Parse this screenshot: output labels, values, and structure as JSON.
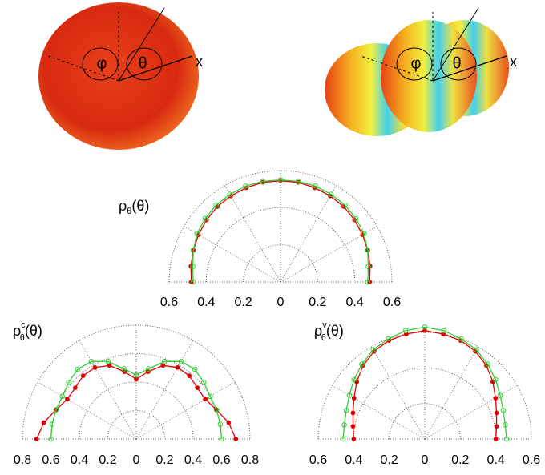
{
  "figure_labels": [
    {
      "phi": "φ",
      "theta": "θ",
      "axis": "x"
    },
    {
      "phi": "φ",
      "theta": "θ",
      "axis": "x"
    }
  ],
  "chart_data": [
    {
      "type": "polar-half",
      "title_symbol": "ρ",
      "title_subscript": "θ",
      "title_argument": "(θ)",
      "x": [
        -90,
        -80,
        -70,
        -60,
        -50,
        -40,
        -30,
        -20,
        -10,
        0,
        10,
        20,
        30,
        40,
        50,
        60,
        70,
        80,
        90
      ],
      "xlim": [
        -90,
        90
      ],
      "ylim": [
        0,
        0.6
      ],
      "yticks": [
        {
          "value": -0.6,
          "label": "0.6"
        },
        {
          "value": -0.4,
          "label": "0.4"
        },
        {
          "value": -0.2,
          "label": "0.2"
        },
        0,
        0.2,
        0.4,
        0.6
      ],
      "series": [
        {
          "color": "#e00000",
          "values": [
            0.48,
            0.49,
            0.5,
            0.51,
            0.52,
            0.53,
            0.535,
            0.54,
            0.545,
            0.545,
            0.545,
            0.54,
            0.535,
            0.53,
            0.52,
            0.51,
            0.5,
            0.49,
            0.48
          ]
        },
        {
          "color": "#33cc33",
          "values": [
            0.47,
            0.48,
            0.5,
            0.52,
            0.53,
            0.54,
            0.545,
            0.55,
            0.55,
            0.55,
            0.55,
            0.55,
            0.545,
            0.54,
            0.53,
            0.52,
            0.5,
            0.48,
            0.47
          ]
        }
      ]
    },
    {
      "type": "polar-half",
      "title_symbol": "ρ",
      "title_subscript": "θ",
      "title_superscript": "c",
      "title_argument": "(θ)",
      "x": [
        -90,
        -80,
        -70,
        -60,
        -50,
        -40,
        -30,
        -20,
        -10,
        0,
        10,
        20,
        30,
        40,
        50,
        60,
        70,
        80,
        90
      ],
      "xlim": [
        -90,
        90
      ],
      "ylim": [
        0,
        0.8
      ],
      "yticks": [
        {
          "value": -0.8,
          "label": "0.8"
        },
        {
          "value": -0.6,
          "label": "0.6"
        },
        {
          "value": -0.4,
          "label": "0.4"
        },
        {
          "value": -0.2,
          "label": "0.2"
        },
        0,
        0.2,
        0.4,
        0.6,
        0.8
      ],
      "series": [
        {
          "color": "#e00000",
          "values": [
            0.7,
            0.66,
            0.6,
            0.56,
            0.56,
            0.58,
            0.58,
            0.55,
            0.48,
            0.42,
            0.48,
            0.55,
            0.58,
            0.58,
            0.56,
            0.56,
            0.6,
            0.66,
            0.7
          ]
        },
        {
          "color": "#33cc33",
          "values": [
            0.6,
            0.6,
            0.6,
            0.6,
            0.62,
            0.64,
            0.63,
            0.58,
            0.5,
            0.45,
            0.5,
            0.58,
            0.63,
            0.64,
            0.62,
            0.6,
            0.6,
            0.6,
            0.6
          ]
        }
      ]
    },
    {
      "type": "polar-half",
      "title_symbol": "ρ",
      "title_subscript": "θ",
      "title_superscript": "v",
      "title_argument": "(θ)",
      "x": [
        -90,
        -80,
        -70,
        -60,
        -50,
        -40,
        -30,
        -20,
        -10,
        0,
        10,
        20,
        30,
        40,
        50,
        60,
        70,
        80,
        90
      ],
      "xlim": [
        -90,
        90
      ],
      "ylim": [
        0,
        0.6
      ],
      "yticks": [
        {
          "value": -0.6,
          "label": "0.6"
        },
        {
          "value": -0.4,
          "label": "0.4"
        },
        {
          "value": -0.2,
          "label": "0.2"
        },
        0,
        0.2,
        0.4,
        0.6
      ],
      "series": [
        {
          "color": "#e00000",
          "values": [
            0.4,
            0.41,
            0.43,
            0.46,
            0.5,
            0.54,
            0.57,
            0.59,
            0.6,
            0.61,
            0.6,
            0.59,
            0.57,
            0.54,
            0.5,
            0.46,
            0.43,
            0.41,
            0.4
          ]
        },
        {
          "color": "#33cc33",
          "values": [
            0.46,
            0.46,
            0.47,
            0.49,
            0.52,
            0.55,
            0.58,
            0.6,
            0.62,
            0.63,
            0.62,
            0.6,
            0.58,
            0.55,
            0.52,
            0.49,
            0.47,
            0.46,
            0.46
          ]
        }
      ]
    }
  ]
}
